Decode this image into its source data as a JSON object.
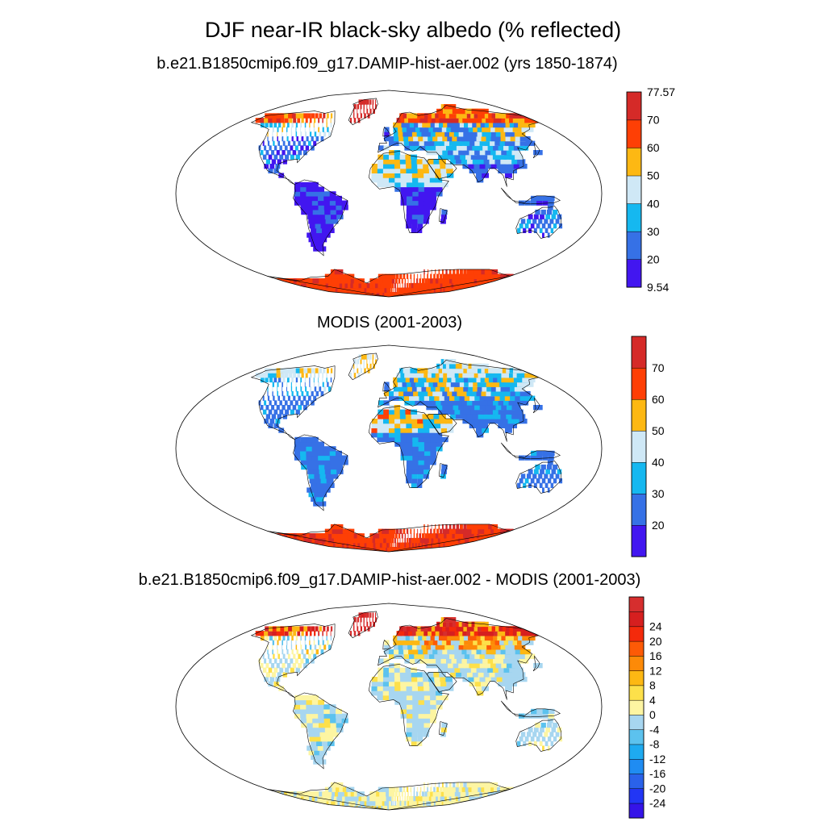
{
  "figure": {
    "title": "DJF near-IR black-sky albedo (% reflected)"
  },
  "panels": [
    {
      "id": "model",
      "title": "b.e21.B1850cmip6.f09_g17.DAMIP-hist-aer.002 (yrs 1850-1874)",
      "colorbar": {
        "colors": [
          "#4216f0",
          "#3671e6",
          "#15b8f0",
          "#cfe8f6",
          "#fdb813",
          "#fe3f05",
          "#d52a28"
        ],
        "labels": [
          "9.54",
          "20",
          "30",
          "40",
          "50",
          "60",
          "70",
          "77.57"
        ]
      }
    },
    {
      "id": "obs",
      "title": "MODIS (2001-2003)",
      "colorbar": {
        "colors": [
          "#4216f0",
          "#3671e6",
          "#15b8f0",
          "#cfe8f6",
          "#fdb813",
          "#fe3f05",
          "#d52a28"
        ],
        "labels": [
          "20",
          "30",
          "40",
          "50",
          "60",
          "70"
        ]
      }
    },
    {
      "id": "diff",
      "title": "b.e21.B1850cmip6.f09_g17.DAMIP-hist-aer.002 - MODIS (2001-2003)",
      "colorbar": {
        "colors": [
          "#3514e8",
          "#2236f5",
          "#2a62ea",
          "#1f8cf2",
          "#1eaaf0",
          "#5cc2ee",
          "#a7d6f0",
          "#fdf5a2",
          "#fde04a",
          "#fdb813",
          "#fd8a08",
          "#fd5a06",
          "#f42a0b",
          "#d61f1f",
          "#d62e2e"
        ],
        "labels": [
          "-24",
          "-20",
          "-16",
          "-12",
          "-8",
          "-4",
          "0",
          "4",
          "8",
          "12",
          "16",
          "20",
          "24"
        ]
      }
    }
  ]
}
